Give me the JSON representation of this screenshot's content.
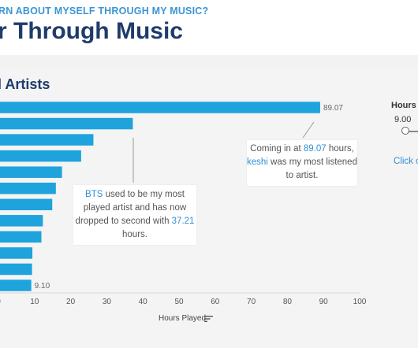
{
  "header": {
    "eyebrow": "RN ABOUT MYSELF THROUGH MY MUSIC?",
    "title": "r Through Music"
  },
  "chart": {
    "title": "l Artists",
    "bar_color": "#1ea3dc",
    "label_color": "#666666",
    "callouts": {
      "keshi": {
        "pre": "Coming in at ",
        "hours": "89.07",
        "mid": " hours,",
        "artist": "keshi",
        "post": " was my most listened to artist."
      },
      "bts": {
        "artist": "BTS",
        "pre": " used to be my most played artist and has now dropped to second with ",
        "hours": "37.21",
        "post": " hours."
      }
    }
  },
  "filter": {
    "title": "Hours P",
    "value": "9.00",
    "link": "Click o"
  },
  "sort_icon": "sort-descending-icon",
  "chart_data": {
    "type": "bar",
    "orientation": "horizontal",
    "title": "l Artists",
    "xlabel": "Hours Played",
    "xlim": [
      0,
      100
    ],
    "xticks": [
      "0",
      "10",
      "20",
      "30",
      "40",
      "50",
      "60",
      "70",
      "80",
      "90",
      "100"
    ],
    "values": [
      89.07,
      37.21,
      26.3,
      22.9,
      17.6,
      15.9,
      14.9,
      12.3,
      11.9,
      9.4,
      9.3,
      9.1
    ],
    "data_labels": [
      "89.07",
      "",
      "",
      "",
      "",
      "",
      "",
      "",
      "",
      "",
      "",
      "9.10"
    ],
    "grid": false,
    "annotations": [
      "Coming in at 89.07 hours, keshi was my most listened to artist.",
      "BTS used to be my most played artist and has now dropped to second with 37.21 hours."
    ]
  }
}
